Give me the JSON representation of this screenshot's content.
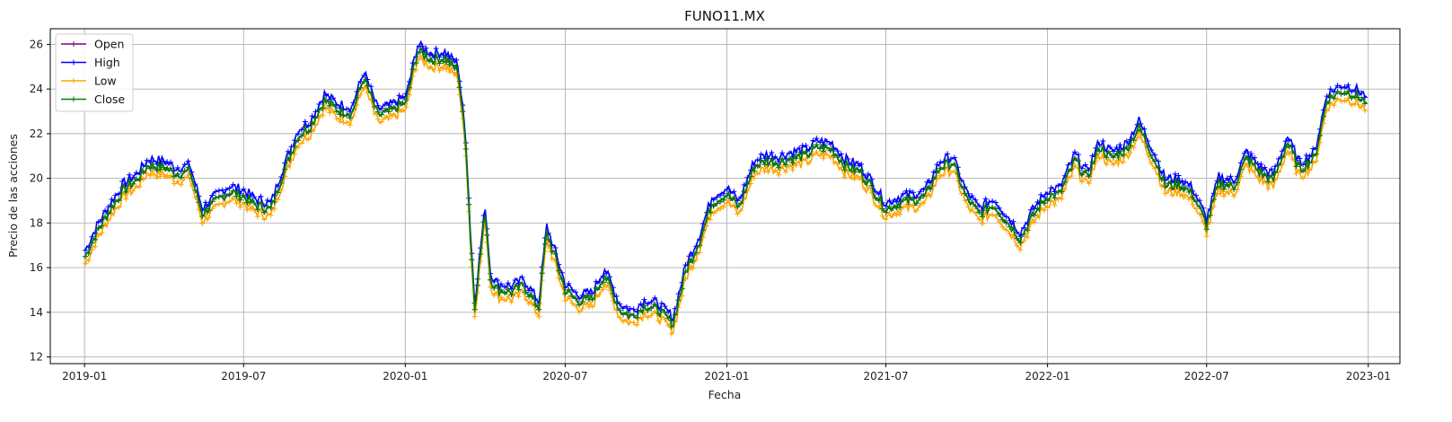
{
  "chart_data": {
    "type": "line",
    "title": "FUNO11.MX",
    "xlabel": "Fecha",
    "ylabel": "Precio de las acciones",
    "x_range": [
      "2018-11-23",
      "2023-02-06"
    ],
    "ylim": [
      11.7,
      26.7
    ],
    "grid": true,
    "legend_position": "upper-left",
    "x_ticks": [
      "2019-01",
      "2019-07",
      "2020-01",
      "2020-07",
      "2021-01",
      "2021-07",
      "2022-01",
      "2022-07",
      "2023-01"
    ],
    "y_ticks": [
      12,
      14,
      16,
      18,
      20,
      22,
      24,
      26
    ],
    "series": [
      {
        "name": "Open",
        "color": "#800080",
        "marker": "+"
      },
      {
        "name": "High",
        "color": "#0000ff",
        "marker": "+"
      },
      {
        "name": "Low",
        "color": "#ffa500",
        "marker": "+"
      },
      {
        "name": "Close",
        "color": "#008000",
        "marker": "+"
      }
    ],
    "close_series": {
      "dates": [
        "2019-01-02",
        "2019-01-15",
        "2019-02-01",
        "2019-02-15",
        "2019-03-01",
        "2019-03-15",
        "2019-04-01",
        "2019-04-15",
        "2019-05-01",
        "2019-05-15",
        "2019-06-01",
        "2019-06-15",
        "2019-07-01",
        "2019-07-15",
        "2019-08-01",
        "2019-08-15",
        "2019-09-01",
        "2019-09-15",
        "2019-10-01",
        "2019-10-15",
        "2019-11-01",
        "2019-11-15",
        "2019-12-01",
        "2019-12-15",
        "2020-01-02",
        "2020-01-15",
        "2020-02-01",
        "2020-02-15",
        "2020-03-01",
        "2020-03-10",
        "2020-03-15",
        "2020-03-20",
        "2020-03-25",
        "2020-04-01",
        "2020-04-07",
        "2020-04-15",
        "2020-05-01",
        "2020-05-15",
        "2020-06-01",
        "2020-06-10",
        "2020-06-20",
        "2020-07-01",
        "2020-07-15",
        "2020-08-01",
        "2020-08-15",
        "2020-09-01",
        "2020-09-15",
        "2020-10-01",
        "2020-10-15",
        "2020-11-01",
        "2020-11-15",
        "2020-12-01",
        "2020-12-15",
        "2021-01-01",
        "2021-01-15",
        "2021-02-01",
        "2021-02-15",
        "2021-03-01",
        "2021-03-15",
        "2021-04-01",
        "2021-04-15",
        "2021-05-01",
        "2021-05-15",
        "2021-06-01",
        "2021-06-15",
        "2021-07-01",
        "2021-07-15",
        "2021-08-01",
        "2021-08-15",
        "2021-09-01",
        "2021-09-15",
        "2021-10-01",
        "2021-10-15",
        "2021-11-01",
        "2021-11-15",
        "2021-12-01",
        "2021-12-15",
        "2022-01-01",
        "2022-01-15",
        "2022-02-01",
        "2022-02-15",
        "2022-03-01",
        "2022-03-15",
        "2022-04-01",
        "2022-04-15",
        "2022-05-01",
        "2022-05-15",
        "2022-06-01",
        "2022-06-15",
        "2022-07-01",
        "2022-07-15",
        "2022-08-01",
        "2022-08-15",
        "2022-09-01",
        "2022-09-15",
        "2022-10-01",
        "2022-10-15",
        "2022-11-01",
        "2022-11-15",
        "2022-12-01",
        "2022-12-15",
        "2022-12-30"
      ],
      "values": [
        16.5,
        17.6,
        18.7,
        19.5,
        19.9,
        20.6,
        20.5,
        20.2,
        20.3,
        18.4,
        19.0,
        19.4,
        19.2,
        18.8,
        18.6,
        20.2,
        21.9,
        22.3,
        23.5,
        23.1,
        22.9,
        24.5,
        22.8,
        23.0,
        23.4,
        25.7,
        25.3,
        25.4,
        24.8,
        21.5,
        17.5,
        14.2,
        16.0,
        18.5,
        15.5,
        15.0,
        14.9,
        15.2,
        14.2,
        17.6,
        16.4,
        15.0,
        14.5,
        14.6,
        15.7,
        14.1,
        13.8,
        14.3,
        14.1,
        13.5,
        15.8,
        17.2,
        18.9,
        19.3,
        18.7,
        20.5,
        20.8,
        20.7,
        20.9,
        21.0,
        21.4,
        21.3,
        20.6,
        20.3,
        19.6,
        18.6,
        18.9,
        19.0,
        19.2,
        20.5,
        20.7,
        19.1,
        18.4,
        18.8,
        18.1,
        17.3,
        18.3,
        19.2,
        19.3,
        20.8,
        20.0,
        21.4,
        20.9,
        21.3,
        22.3,
        21.0,
        19.7,
        19.7,
        19.3,
        17.9,
        19.8,
        19.6,
        20.9,
        20.2,
        19.9,
        21.6,
        20.4,
        20.9,
        23.5,
        23.9,
        23.8,
        23.4
      ]
    }
  }
}
